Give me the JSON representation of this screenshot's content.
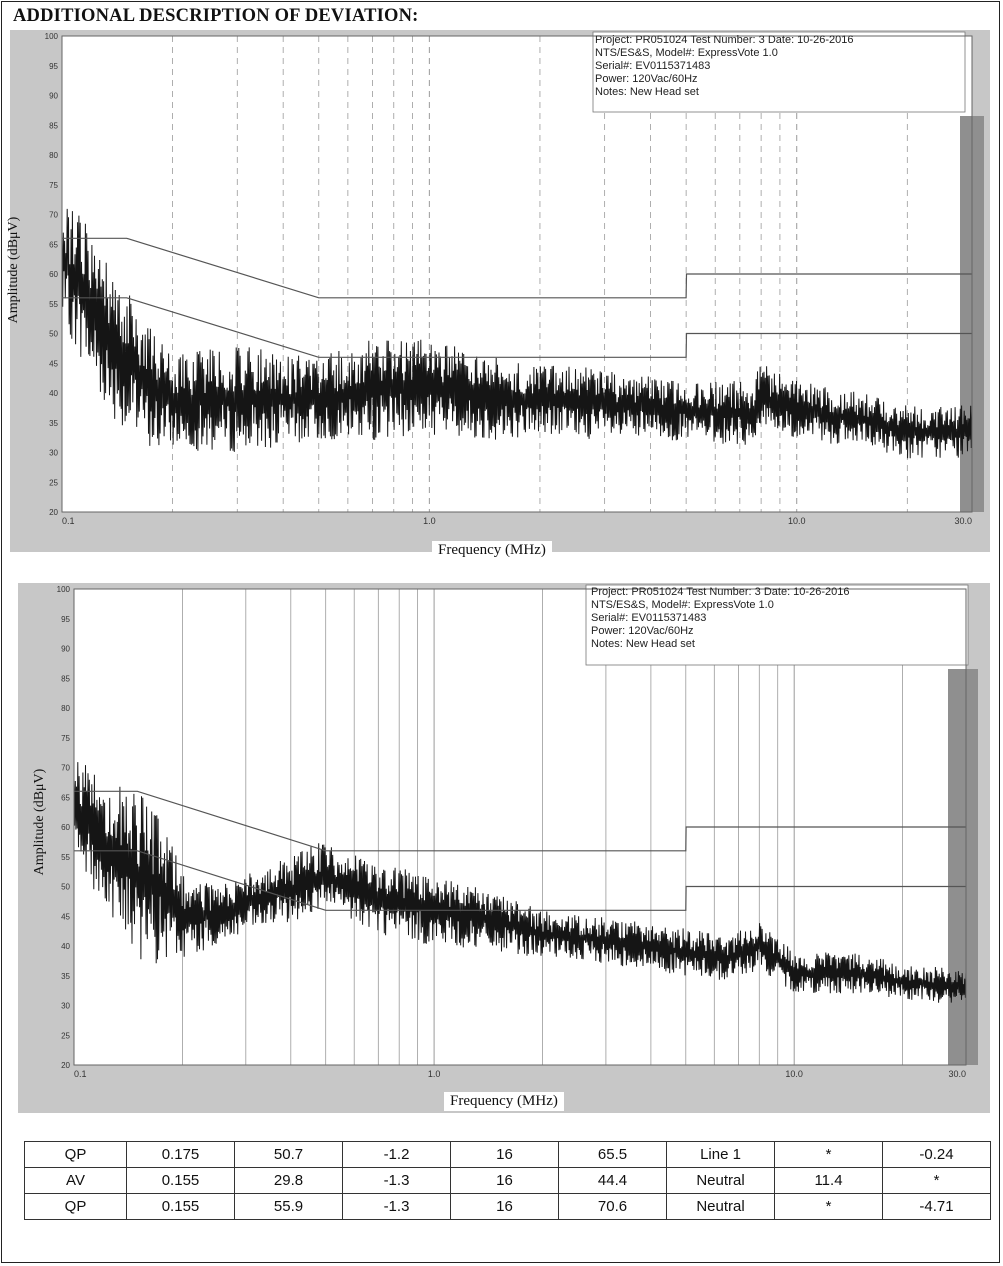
{
  "heading": "ADDITIONAL DESCRIPTION OF DEVIATION:",
  "colors": {
    "trace": "#151515",
    "limit": "#555555",
    "grid": "#9a9a9a",
    "border": "#c7c7c7"
  },
  "chart_data": [
    {
      "type": "line",
      "xlabel": "Frequency (MHz)",
      "ylabel": "Amplitude (dBμV)",
      "x_scale": "log",
      "xlim": [
        0.1,
        30.0
      ],
      "ylim": [
        20,
        100
      ],
      "x_tick_labels": [
        "0.1",
        "1.0",
        "10.0",
        "30.0"
      ],
      "y_tick_labels": [
        "20",
        "25",
        "30",
        "35",
        "40",
        "45",
        "50",
        "55",
        "60",
        "65",
        "70",
        "75",
        "80",
        "85",
        "90",
        "95",
        "100"
      ],
      "info": {
        "line1": "Project: PR051024   Test Number: 3   Date: 10-26-2016",
        "line2": "NTS/ES&S, Model#: ExpressVote 1.0",
        "line3": "Serial#: EV0115371483",
        "line4": "Power: 120Vac/60Hz",
        "line5": "Notes: New Head set"
      },
      "series": [
        {
          "role": "qp-limit",
          "x": [
            0.1,
            0.15,
            0.5,
            5.0,
            5.01,
            30.0
          ],
          "y": [
            66,
            66,
            56,
            56,
            60,
            60
          ]
        },
        {
          "role": "av-limit",
          "x": [
            0.1,
            0.15,
            0.5,
            5.0,
            5.01,
            30.0
          ],
          "y": [
            56,
            56,
            46,
            46,
            50,
            50
          ]
        },
        {
          "role": "emission-envelope",
          "x": [
            0.1,
            0.11,
            0.13,
            0.15,
            0.18,
            0.2,
            0.25,
            0.3,
            0.4,
            0.5,
            0.7,
            1.0,
            1.5,
            2.0,
            3.0,
            5.0,
            7.5,
            8.0,
            10.0,
            15.0,
            20.0,
            30.0
          ],
          "y_max": [
            72,
            71,
            64,
            57,
            51,
            46,
            48,
            48,
            47,
            46,
            49,
            49,
            46,
            45,
            44,
            42,
            42,
            45,
            42,
            40,
            38,
            38
          ],
          "y_min": [
            52,
            47,
            38,
            33,
            30,
            31,
            30,
            30,
            31,
            32,
            32,
            33,
            32,
            33,
            32,
            32,
            31,
            34,
            32,
            31,
            29,
            29
          ]
        }
      ]
    },
    {
      "type": "line",
      "xlabel": "Frequency (MHz)",
      "ylabel": "Amplitude (dBμV)",
      "x_scale": "log",
      "xlim": [
        0.1,
        30.0
      ],
      "ylim": [
        20,
        100
      ],
      "x_tick_labels": [
        "0.1",
        "1.0",
        "10.0",
        "30.0"
      ],
      "y_tick_labels": [
        "20",
        "25",
        "30",
        "35",
        "40",
        "45",
        "50",
        "55",
        "60",
        "65",
        "70",
        "75",
        "80",
        "85",
        "90",
        "95",
        "100"
      ],
      "info": {
        "line1": "Project: PR051024   Test Number: 3   Date: 10-26-2016",
        "line2": "NTS/ES&S, Model#: ExpressVote 1.0",
        "line3": "Serial#: EV0115371483",
        "line4": "Power: 120Vac/60Hz",
        "line5": "Notes: New Head set"
      },
      "series": [
        {
          "role": "qp-limit",
          "x": [
            0.1,
            0.15,
            0.5,
            5.0,
            5.01,
            30.0
          ],
          "y": [
            66,
            66,
            56,
            56,
            60,
            60
          ]
        },
        {
          "role": "av-limit",
          "x": [
            0.1,
            0.15,
            0.5,
            5.0,
            5.01,
            30.0
          ],
          "y": [
            56,
            56,
            46,
            46,
            50,
            50
          ]
        },
        {
          "role": "emission-envelope",
          "x": [
            0.1,
            0.11,
            0.13,
            0.15,
            0.18,
            0.2,
            0.25,
            0.3,
            0.4,
            0.5,
            0.55,
            0.7,
            1.0,
            1.5,
            2.0,
            3.0,
            5.0,
            6.5,
            8.0,
            10.0,
            15.0,
            20.0,
            30.0
          ],
          "y_max": [
            72,
            70,
            68,
            66,
            62,
            52,
            50,
            52,
            55,
            58,
            56,
            54,
            52,
            49,
            46,
            45,
            43,
            42,
            44,
            39,
            39,
            37,
            36
          ],
          "y_min": [
            58,
            50,
            44,
            38,
            36,
            38,
            40,
            42,
            44,
            46,
            45,
            42,
            40,
            39,
            38,
            37,
            35,
            34,
            36,
            32,
            32,
            31,
            30
          ]
        }
      ]
    }
  ],
  "table": {
    "rows": [
      [
        "QP",
        "0.175",
        "50.7",
        "-1.2",
        "16",
        "65.5",
        "Line 1",
        "*",
        "-0.24"
      ],
      [
        "AV",
        "0.155",
        "29.8",
        "-1.3",
        "16",
        "44.4",
        "Neutral",
        "11.4",
        "*"
      ],
      [
        "QP",
        "0.155",
        "55.9",
        "-1.3",
        "16",
        "70.6",
        "Neutral",
        "*",
        "-4.71"
      ]
    ]
  }
}
